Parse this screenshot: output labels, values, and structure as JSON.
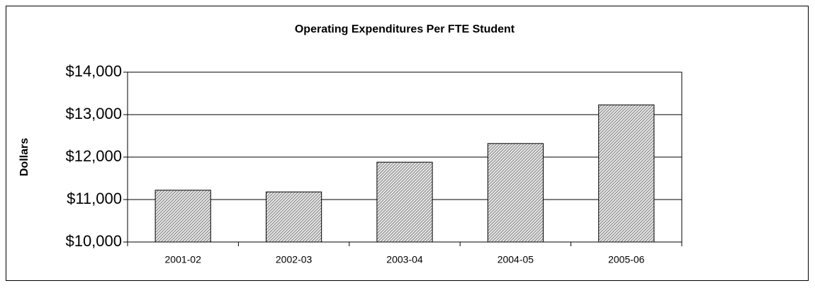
{
  "chart_data": {
    "type": "bar",
    "title": "Operating Expenditures Per FTE Student",
    "y_label": "Dollars",
    "categories": [
      "2001-02",
      "2002-03",
      "2003-04",
      "2004-05",
      "2005-06"
    ],
    "values": [
      11220,
      11180,
      11880,
      12320,
      13230
    ],
    "color": "#a0a0a0",
    "ylim": [
      10000,
      14000
    ],
    "yticks": [
      {
        "value": 10000,
        "label": "$10,000"
      },
      {
        "value": 11000,
        "label": "$11,000"
      },
      {
        "value": 12000,
        "label": "$12,000"
      },
      {
        "value": 13000,
        "label": "$13,000"
      },
      {
        "value": 14000,
        "label": "$14,000"
      }
    ],
    "grid": true
  }
}
